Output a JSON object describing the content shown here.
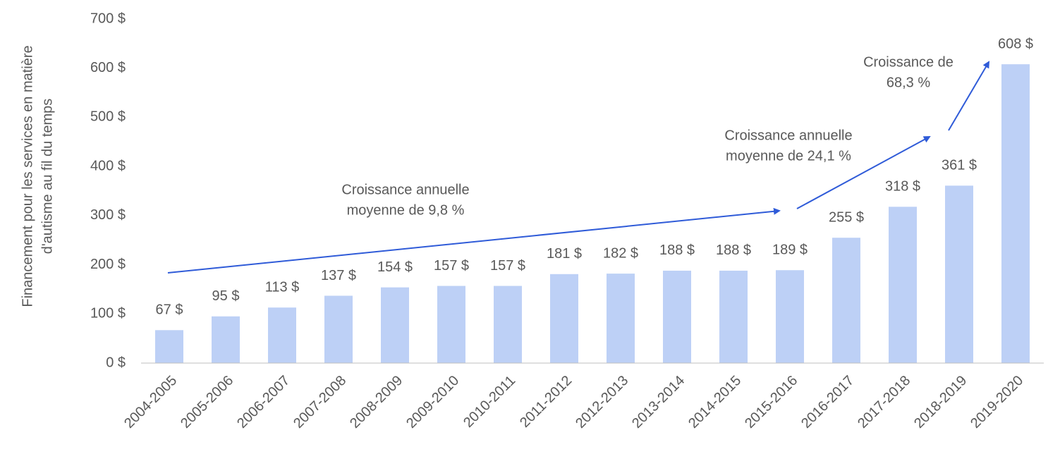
{
  "chart_data": {
    "type": "bar",
    "ylabel": [
      "Financement pour les services en matière",
      "d'autisme au fil du temps"
    ],
    "categories": [
      "2004-2005",
      "2005-2006",
      "2006-2007",
      "2007-2008",
      "2008-2009",
      "2009-2010",
      "2010-2011",
      "2011-2012",
      "2012-2013",
      "2013-2014",
      "2014-2015",
      "2015-2016",
      "2016-2017",
      "2017-2018",
      "2018-2019",
      "2019-2020"
    ],
    "values": [
      67,
      95,
      113,
      137,
      154,
      157,
      157,
      181,
      182,
      188,
      188,
      189,
      255,
      318,
      361,
      608
    ],
    "value_labels": [
      "67 $",
      "95 $",
      "113 $",
      "137 $",
      "154 $",
      "157 $",
      "157 $",
      "181 $",
      "182 $",
      "188 $",
      "188 $",
      "189 $",
      "255 $",
      "318 $",
      "361 $",
      "608 $"
    ],
    "color": "#bdd0f6",
    "ylim": [
      0,
      700
    ],
    "yticks": [
      {
        "value": 0,
        "label": "0 $"
      },
      {
        "value": 100,
        "label": "100 $"
      },
      {
        "value": 200,
        "label": "200 $"
      },
      {
        "value": 300,
        "label": "300 $"
      },
      {
        "value": 400,
        "label": "400 $"
      },
      {
        "value": 500,
        "label": "500 $"
      },
      {
        "value": 600,
        "label": "600 $"
      },
      {
        "value": 700,
        "label": "700 $"
      }
    ],
    "annotations": [
      [
        "Croissance annuelle",
        "moyenne de 9,8 %"
      ],
      [
        "Croissance annuelle",
        "moyenne de 24,1 %"
      ],
      [
        "Croissance de",
        "68,3 %"
      ]
    ]
  }
}
